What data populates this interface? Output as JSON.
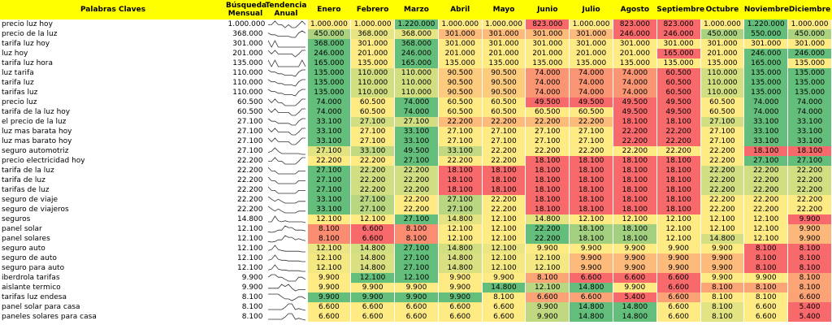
{
  "header": {
    "keyword": "Palabras Claves",
    "monthly": "Búsqueda Mensual",
    "trend": "Tendencia Anual",
    "months": [
      "Enero",
      "Febrero",
      "Marzo",
      "Abril",
      "Mayo",
      "Junio",
      "Julio",
      "Agosto",
      "Septiembre",
      "Octubre",
      "Noviembre",
      "Diciembre"
    ]
  },
  "rows": [
    {
      "keyword": "precio luz hoy",
      "monthly": "1.000.000",
      "months": [
        "1.000.000",
        "1.000.000",
        "1.220.000",
        "1.000.000",
        "1.000.000",
        "823.000",
        "1.000.000",
        "823.000",
        "823.000",
        "1.000.000",
        "1.220.000",
        "1.000.000"
      ]
    },
    {
      "keyword": "precio de la luz",
      "monthly": "368.000",
      "months": [
        "450.000",
        "368.000",
        "368.000",
        "301.000",
        "301.000",
        "301.000",
        "301.000",
        "246.000",
        "246.000",
        "450.000",
        "550.000",
        "450.000"
      ]
    },
    {
      "keyword": "tarifa luz hoy",
      "monthly": "301.000",
      "months": [
        "368.000",
        "301.000",
        "368.000",
        "301.000",
        "301.000",
        "301.000",
        "301.000",
        "301.000",
        "301.000",
        "301.000",
        "301.000",
        "301.000"
      ]
    },
    {
      "keyword": "luz hoy",
      "monthly": "201.000",
      "months": [
        "246.000",
        "201.000",
        "246.000",
        "201.000",
        "201.000",
        "201.000",
        "201.000",
        "201.000",
        "165.000",
        "201.000",
        "246.000",
        "246.000"
      ]
    },
    {
      "keyword": "tarifa luz hora",
      "monthly": "135.000",
      "months": [
        "165.000",
        "135.000",
        "165.000",
        "135.000",
        "135.000",
        "135.000",
        "135.000",
        "135.000",
        "135.000",
        "135.000",
        "165.000",
        "135.000"
      ]
    },
    {
      "keyword": "luz tarifa",
      "monthly": "110.000",
      "months": [
        "135.000",
        "110.000",
        "110.000",
        "90.500",
        "90.500",
        "74.000",
        "74.000",
        "74.000",
        "60.500",
        "110.000",
        "135.000",
        "135.000"
      ]
    },
    {
      "keyword": "tarifa luz",
      "monthly": "110.000",
      "months": [
        "135.000",
        "110.000",
        "110.000",
        "90.500",
        "90.500",
        "74.000",
        "74.000",
        "74.000",
        "60.500",
        "110.000",
        "135.000",
        "135.000"
      ]
    },
    {
      "keyword": "tarifas luz",
      "monthly": "110.000",
      "months": [
        "135.000",
        "110.000",
        "110.000",
        "90.500",
        "90.500",
        "74.000",
        "74.000",
        "74.000",
        "60.500",
        "110.000",
        "135.000",
        "135.000"
      ]
    },
    {
      "keyword": "precio luz",
      "monthly": "60.500",
      "months": [
        "74.000",
        "60.500",
        "74.000",
        "60.500",
        "60.500",
        "49.500",
        "49.500",
        "49.500",
        "49.500",
        "60.500",
        "74.000",
        "74.000"
      ]
    },
    {
      "keyword": "tarifa de la luz hoy",
      "monthly": "60.500",
      "months": [
        "74.000",
        "60.500",
        "74.000",
        "60.500",
        "60.500",
        "60.500",
        "60.500",
        "49.500",
        "49.500",
        "60.500",
        "74.000",
        "74.000"
      ]
    },
    {
      "keyword": "el precio de la luz",
      "monthly": "27.100",
      "months": [
        "33.100",
        "27.100",
        "27.100",
        "22.200",
        "22.200",
        "22.200",
        "22.200",
        "18.100",
        "18.100",
        "27.100",
        "33.100",
        "33.100"
      ]
    },
    {
      "keyword": "luz mas barata hoy",
      "monthly": "27.100",
      "months": [
        "33.100",
        "27.100",
        "33.100",
        "27.100",
        "27.100",
        "27.100",
        "27.100",
        "22.200",
        "22.200",
        "27.100",
        "33.100",
        "33.100"
      ]
    },
    {
      "keyword": "luz mas barato hoy",
      "monthly": "27.100",
      "months": [
        "33.100",
        "27.100",
        "33.100",
        "27.100",
        "27.100",
        "27.100",
        "27.100",
        "22.200",
        "22.200",
        "27.100",
        "33.100",
        "33.100"
      ]
    },
    {
      "keyword": "seguro automotriz",
      "monthly": "27.100",
      "months": [
        "27.100",
        "33.100",
        "49.500",
        "33.100",
        "22.200",
        "22.200",
        "22.200",
        "22.200",
        "22.200",
        "22.200",
        "18.100",
        "18.100"
      ]
    },
    {
      "keyword": "precio electricidad hoy",
      "monthly": "22.200",
      "months": [
        "22.200",
        "22.200",
        "27.100",
        "22.200",
        "22.200",
        "18.100",
        "18.100",
        "18.100",
        "18.100",
        "22.200",
        "27.100",
        "27.100"
      ]
    },
    {
      "keyword": "tarifa de la luz",
      "monthly": "22.200",
      "months": [
        "27.100",
        "22.200",
        "22.200",
        "18.100",
        "18.100",
        "18.100",
        "18.100",
        "18.100",
        "18.100",
        "22.200",
        "22.200",
        "22.200"
      ]
    },
    {
      "keyword": "tarifa de luz",
      "monthly": "22.200",
      "months": [
        "27.100",
        "22.200",
        "22.200",
        "18.100",
        "18.100",
        "18.100",
        "18.100",
        "18.100",
        "18.100",
        "22.200",
        "22.200",
        "22.200"
      ]
    },
    {
      "keyword": "tarifas de luz",
      "monthly": "22.200",
      "months": [
        "27.100",
        "22.200",
        "22.200",
        "18.100",
        "18.100",
        "18.100",
        "18.100",
        "18.100",
        "18.100",
        "22.200",
        "22.200",
        "22.200"
      ]
    },
    {
      "keyword": "seguro de viaje",
      "monthly": "22.200",
      "months": [
        "33.100",
        "27.100",
        "22.200",
        "27.100",
        "22.200",
        "18.100",
        "18.100",
        "18.100",
        "18.100",
        "22.200",
        "22.200",
        "22.200"
      ]
    },
    {
      "keyword": "seguro de viajeros",
      "monthly": "22.200",
      "months": [
        "33.100",
        "27.100",
        "22.200",
        "27.100",
        "22.200",
        "18.100",
        "18.100",
        "18.100",
        "18.100",
        "22.200",
        "22.200",
        "22.200"
      ]
    },
    {
      "keyword": "seguros",
      "monthly": "14.800",
      "months": [
        "12.100",
        "12.100",
        "27.100",
        "14.800",
        "12.100",
        "14.800",
        "12.100",
        "12.100",
        "12.100",
        "12.100",
        "12.100",
        "9.900"
      ]
    },
    {
      "keyword": "panel solar",
      "monthly": "12.100",
      "months": [
        "8.100",
        "6.600",
        "8.100",
        "12.100",
        "12.100",
        "22.200",
        "18.100",
        "18.100",
        "12.100",
        "12.100",
        "12.100",
        "9.900"
      ]
    },
    {
      "keyword": "panel solares",
      "monthly": "12.100",
      "months": [
        "8.100",
        "6.600",
        "8.100",
        "12.100",
        "12.100",
        "22.200",
        "18.100",
        "18.100",
        "12.100",
        "14.800",
        "12.100",
        "9.900"
      ]
    },
    {
      "keyword": "seguro auto",
      "monthly": "12.100",
      "months": [
        "12.100",
        "14.800",
        "27.100",
        "14.800",
        "12.100",
        "9.900",
        "9.900",
        "9.900",
        "9.900",
        "9.900",
        "8.100",
        "8.100"
      ]
    },
    {
      "keyword": "seguro de auto",
      "monthly": "12.100",
      "months": [
        "12.100",
        "14.800",
        "27.100",
        "14.800",
        "12.100",
        "12.100",
        "9.900",
        "9.900",
        "9.900",
        "9.900",
        "8.100",
        "8.100"
      ]
    },
    {
      "keyword": "seguro para auto",
      "monthly": "12.100",
      "months": [
        "12.100",
        "14.800",
        "27.100",
        "14.800",
        "12.100",
        "12.100",
        "9.900",
        "9.900",
        "9.900",
        "9.900",
        "8.100",
        "8.100"
      ]
    },
    {
      "keyword": "iberdrola tarifas",
      "monthly": "9.900",
      "months": [
        "9.900",
        "12.100",
        "12.100",
        "9.900",
        "9.900",
        "8.100",
        "6.600",
        "6.600",
        "6.600",
        "9.900",
        "9.900",
        "8.100"
      ]
    },
    {
      "keyword": "aislante termico",
      "monthly": "9.900",
      "months": [
        "9.900",
        "9.900",
        "9.900",
        "9.900",
        "14.800",
        "12.100",
        "14.800",
        "9.900",
        "6.600",
        "8.100",
        "8.100",
        "8.100"
      ]
    },
    {
      "keyword": "tarifas luz endesa",
      "monthly": "8.100",
      "months": [
        "9.900",
        "9.900",
        "9.900",
        "9.900",
        "8.100",
        "6.600",
        "6.600",
        "5.400",
        "6.600",
        "8.100",
        "8.100",
        "6.600"
      ]
    },
    {
      "keyword": "panel solar para casa",
      "monthly": "8.100",
      "months": [
        "6.600",
        "6.600",
        "6.600",
        "6.600",
        "6.600",
        "9.900",
        "14.800",
        "14.800",
        "6.600",
        "8.100",
        "6.600",
        "5.400"
      ]
    },
    {
      "keyword": "paneles solares para casa",
      "monthly": "8.100",
      "months": [
        "6.600",
        "6.600",
        "6.600",
        "6.600",
        "6.600",
        "9.900",
        "14.800",
        "14.800",
        "6.600",
        "8.100",
        "6.600",
        "5.400"
      ]
    }
  ]
}
